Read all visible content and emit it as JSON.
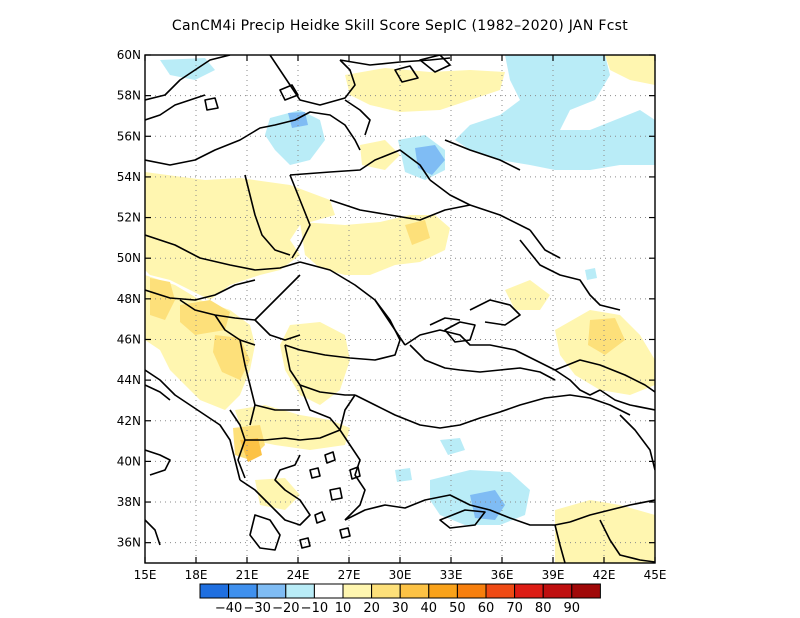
{
  "title": "CanCM4i Precip Heidke Skill Score SepIC (1982–2020) JAN Fcst",
  "map": {
    "lon_range": [
      15,
      45
    ],
    "lat_range": [
      35,
      60
    ],
    "x_ticks": [
      "15E",
      "18E",
      "21E",
      "24E",
      "27E",
      "30E",
      "33E",
      "36E",
      "39E",
      "42E",
      "45E"
    ],
    "y_ticks": [
      "60N",
      "58N",
      "56N",
      "54N",
      "52N",
      "50N",
      "48N",
      "46N",
      "44N",
      "42N",
      "40N",
      "38N",
      "36N"
    ],
    "grid": "dotted"
  },
  "colorbar": {
    "colors": [
      "#1f6fe0",
      "#3f90ee",
      "#7fbcf4",
      "#b9ecf7",
      "#ffffff",
      "#fff6b0",
      "#fde07a",
      "#fcc245",
      "#f9a21a",
      "#f77f0d",
      "#ef4a14",
      "#dd1c14",
      "#bf0f0f",
      "#a00808"
    ],
    "labels": [
      "−40",
      "−30",
      "−20",
      "−10",
      "10",
      "20",
      "30",
      "40",
      "50",
      "60",
      "70",
      "80",
      "90"
    ]
  }
}
